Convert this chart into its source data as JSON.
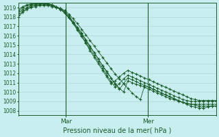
{
  "title": "Pression niveau de la mer( hPa )",
  "background_color": "#c8eef0",
  "grid_color": "#b0d8d8",
  "line_color": "#1a5c2a",
  "marker_color": "#1a5c2a",
  "ylim": [
    1007.5,
    1019.5
  ],
  "yticks": [
    1008,
    1009,
    1010,
    1011,
    1012,
    1013,
    1014,
    1015,
    1016,
    1017,
    1018,
    1019
  ],
  "vline_Mar": 0.24,
  "vline_Mer": 0.655,
  "n_points": 48,
  "series": [
    [
      1018.0,
      1018.5,
      1018.8,
      1019.0,
      1019.1,
      1019.2,
      1019.2,
      1019.2,
      1019.1,
      1019.0,
      1018.9,
      1018.7,
      1018.3,
      1017.8,
      1017.3,
      1016.7,
      1016.1,
      1015.5,
      1014.9,
      1014.3,
      1013.7,
      1013.1,
      1012.5,
      1011.9,
      1011.4,
      1010.9,
      1010.4,
      1009.9,
      1009.5,
      1009.2,
      1010.7,
      1010.5,
      1010.3,
      1010.1,
      1009.9,
      1009.7,
      1009.5,
      1009.3,
      1009.1,
      1008.9,
      1008.7,
      1008.5,
      1008.4,
      1008.3,
      1008.3,
      1008.4,
      1008.5,
      1008.5
    ],
    [
      1018.2,
      1018.6,
      1018.9,
      1019.1,
      1019.2,
      1019.3,
      1019.3,
      1019.3,
      1019.2,
      1019.0,
      1018.8,
      1018.5,
      1018.0,
      1017.4,
      1016.8,
      1016.2,
      1015.5,
      1014.8,
      1014.2,
      1013.5,
      1012.8,
      1012.2,
      1011.5,
      1010.9,
      1010.4,
      1010.0,
      1011.2,
      1011.0,
      1010.8,
      1010.7,
      1010.5,
      1010.3,
      1010.1,
      1009.9,
      1009.7,
      1009.5,
      1009.3,
      1009.2,
      1009.0,
      1008.9,
      1008.8,
      1008.7,
      1008.6,
      1008.5,
      1008.5,
      1008.5,
      1008.5,
      1008.5
    ],
    [
      1018.4,
      1018.8,
      1019.0,
      1019.2,
      1019.3,
      1019.4,
      1019.4,
      1019.4,
      1019.3,
      1019.1,
      1018.9,
      1018.6,
      1018.1,
      1017.5,
      1016.9,
      1016.3,
      1015.6,
      1014.9,
      1014.2,
      1013.5,
      1012.8,
      1012.1,
      1011.5,
      1010.8,
      1010.3,
      1010.9,
      1011.5,
      1011.3,
      1011.1,
      1010.9,
      1010.7,
      1010.5,
      1010.3,
      1010.1,
      1009.9,
      1009.7,
      1009.5,
      1009.3,
      1009.1,
      1008.9,
      1008.8,
      1008.7,
      1008.7,
      1008.7,
      1008.7,
      1008.7,
      1008.7,
      1008.7
    ],
    [
      1018.6,
      1019.0,
      1019.2,
      1019.3,
      1019.4,
      1019.4,
      1019.4,
      1019.3,
      1019.2,
      1019.0,
      1018.8,
      1018.4,
      1017.9,
      1017.3,
      1016.7,
      1016.0,
      1015.3,
      1014.6,
      1013.9,
      1013.2,
      1012.5,
      1011.8,
      1011.1,
      1010.5,
      1010.9,
      1011.4,
      1011.8,
      1011.6,
      1011.4,
      1011.2,
      1011.0,
      1010.8,
      1010.6,
      1010.4,
      1010.2,
      1010.0,
      1009.8,
      1009.6,
      1009.4,
      1009.2,
      1009.1,
      1009.0,
      1009.0,
      1009.0,
      1009.0,
      1009.0,
      1009.0,
      1009.0
    ],
    [
      1018.8,
      1019.1,
      1019.3,
      1019.4,
      1019.4,
      1019.5,
      1019.5,
      1019.4,
      1019.3,
      1019.1,
      1018.8,
      1018.4,
      1017.9,
      1017.3,
      1016.6,
      1015.9,
      1015.2,
      1014.4,
      1013.7,
      1013.0,
      1012.3,
      1011.6,
      1010.9,
      1011.2,
      1011.6,
      1012.0,
      1012.3,
      1012.1,
      1011.9,
      1011.7,
      1011.5,
      1011.3,
      1011.1,
      1010.9,
      1010.7,
      1010.5,
      1010.3,
      1010.1,
      1009.9,
      1009.7,
      1009.5,
      1009.3,
      1009.2,
      1009.1,
      1009.1,
      1009.1,
      1009.1,
      1009.1
    ]
  ]
}
